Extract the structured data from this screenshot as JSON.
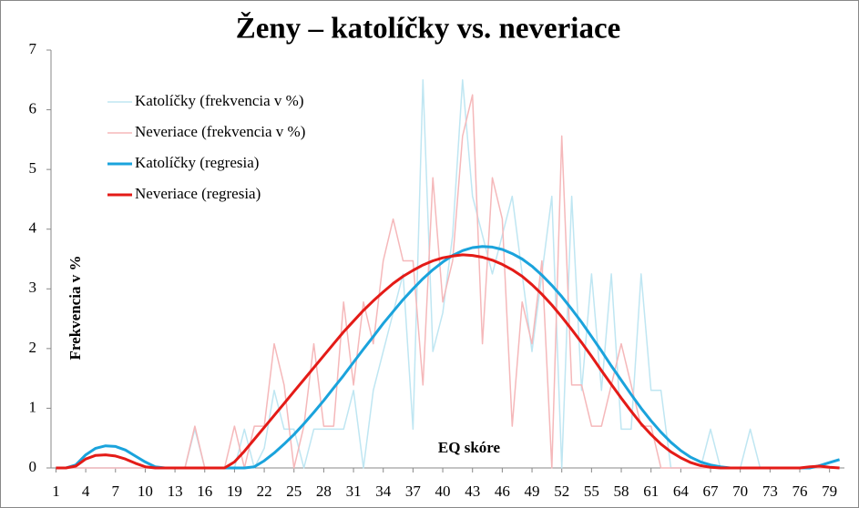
{
  "chart_data": {
    "type": "line",
    "title": "Ženy – katolíčky vs. neveriace",
    "ylabel": "Frekvencia v %",
    "xlabel": "EQ skóre",
    "x": [
      1,
      2,
      3,
      4,
      5,
      6,
      7,
      8,
      9,
      10,
      11,
      12,
      13,
      14,
      15,
      16,
      17,
      18,
      19,
      20,
      21,
      22,
      23,
      24,
      25,
      26,
      27,
      28,
      29,
      30,
      31,
      32,
      33,
      34,
      35,
      36,
      37,
      38,
      39,
      40,
      41,
      42,
      43,
      44,
      45,
      46,
      47,
      48,
      49,
      50,
      51,
      52,
      53,
      54,
      55,
      56,
      57,
      58,
      59,
      60,
      61,
      62,
      63,
      64,
      65,
      66,
      67,
      68,
      69,
      70,
      71,
      72,
      73,
      74,
      75,
      76,
      77,
      78,
      79,
      80
    ],
    "xlim": [
      0.5,
      80.5
    ],
    "xticks": [
      1,
      4,
      7,
      10,
      13,
      16,
      19,
      22,
      25,
      28,
      31,
      34,
      37,
      40,
      43,
      46,
      49,
      52,
      55,
      58,
      61,
      64,
      67,
      70,
      73,
      76,
      79
    ],
    "ylim": [
      0,
      7
    ],
    "yticks": [
      0,
      1,
      2,
      3,
      4,
      5,
      6,
      7
    ],
    "legend": "upper left",
    "series": [
      {
        "name": "Katolíčky (frekvencia v %)",
        "color": "#bfe6f2",
        "width": 1.5,
        "values": [
          0,
          0,
          0,
          0,
          0,
          0,
          0,
          0,
          0,
          0,
          0,
          0,
          0,
          0,
          0.65,
          0,
          0,
          0,
          0,
          0.65,
          0,
          0.33,
          1.3,
          0.65,
          0.65,
          0,
          0.65,
          0.65,
          0.65,
          0.65,
          1.3,
          0,
          1.3,
          1.95,
          2.6,
          3.25,
          0.65,
          6.5,
          1.95,
          2.6,
          3.9,
          6.5,
          4.55,
          3.9,
          3.25,
          3.9,
          4.55,
          3.25,
          1.95,
          3.25,
          4.55,
          0,
          4.55,
          1.3,
          3.25,
          1.3,
          3.25,
          0.65,
          0.65,
          3.25,
          1.3,
          1.3,
          0,
          0,
          0,
          0,
          0.65,
          0,
          0,
          0,
          0.65,
          0,
          0,
          0,
          0,
          0,
          0,
          0,
          0,
          0
        ]
      },
      {
        "name": "Neveriace (frekvencia v %)",
        "color": "#f5b8ba",
        "width": 1.5,
        "values": [
          0,
          0,
          0,
          0,
          0,
          0,
          0,
          0,
          0,
          0,
          0,
          0,
          0,
          0,
          0.7,
          0,
          0,
          0,
          0.7,
          0,
          0.7,
          0.7,
          2.08,
          1.39,
          0,
          0.7,
          2.08,
          0.7,
          0.7,
          2.78,
          1.39,
          2.78,
          2.08,
          3.47,
          4.17,
          3.47,
          3.47,
          1.39,
          4.86,
          2.78,
          3.47,
          5.56,
          6.25,
          2.08,
          4.86,
          4.17,
          0.7,
          2.78,
          2.08,
          3.47,
          0,
          5.56,
          1.39,
          1.39,
          0.7,
          0.7,
          1.39,
          2.08,
          1.39,
          0.7,
          0.7,
          0,
          0,
          0,
          0,
          0,
          0,
          0,
          0,
          0,
          0,
          0,
          0,
          0,
          0,
          0,
          0,
          0,
          0,
          0
        ]
      },
      {
        "name": "Katolíčky (regresia)",
        "color": "#1aa3dc",
        "width": 3,
        "values": [
          0,
          0,
          0.05,
          0.22,
          0.33,
          0.37,
          0.36,
          0.3,
          0.2,
          0.1,
          0.02,
          0,
          0,
          0,
          0,
          0,
          0,
          0,
          0,
          0,
          0.02,
          0.12,
          0.25,
          0.4,
          0.56,
          0.74,
          0.93,
          1.13,
          1.34,
          1.55,
          1.77,
          1.99,
          2.2,
          2.42,
          2.62,
          2.82,
          3.0,
          3.17,
          3.32,
          3.45,
          3.56,
          3.64,
          3.69,
          3.71,
          3.7,
          3.66,
          3.59,
          3.5,
          3.38,
          3.23,
          3.06,
          2.87,
          2.66,
          2.44,
          2.2,
          1.96,
          1.71,
          1.47,
          1.23,
          1.0,
          0.79,
          0.6,
          0.43,
          0.29,
          0.18,
          0.1,
          0.05,
          0.02,
          0,
          0,
          0,
          0,
          0,
          0,
          0,
          0,
          0,
          0.04,
          0.09,
          0.14
        ]
      },
      {
        "name": "Neveriace (regresia)",
        "color": "#e41b17",
        "width": 3,
        "values": [
          0,
          0,
          0.03,
          0.15,
          0.21,
          0.22,
          0.2,
          0.15,
          0.08,
          0.02,
          0,
          0,
          0,
          0,
          0,
          0,
          0,
          0,
          0.1,
          0.28,
          0.48,
          0.68,
          0.88,
          1.08,
          1.28,
          1.48,
          1.68,
          1.88,
          2.08,
          2.28,
          2.46,
          2.64,
          2.8,
          2.95,
          3.09,
          3.21,
          3.31,
          3.4,
          3.47,
          3.52,
          3.55,
          3.57,
          3.56,
          3.53,
          3.48,
          3.41,
          3.32,
          3.21,
          3.07,
          2.91,
          2.73,
          2.53,
          2.32,
          2.1,
          1.87,
          1.63,
          1.4,
          1.17,
          0.95,
          0.74,
          0.56,
          0.4,
          0.27,
          0.17,
          0.09,
          0.04,
          0.01,
          0,
          0,
          0,
          0,
          0,
          0,
          0,
          0,
          0,
          0.02,
          0.03,
          0.01,
          0
        ]
      }
    ]
  }
}
